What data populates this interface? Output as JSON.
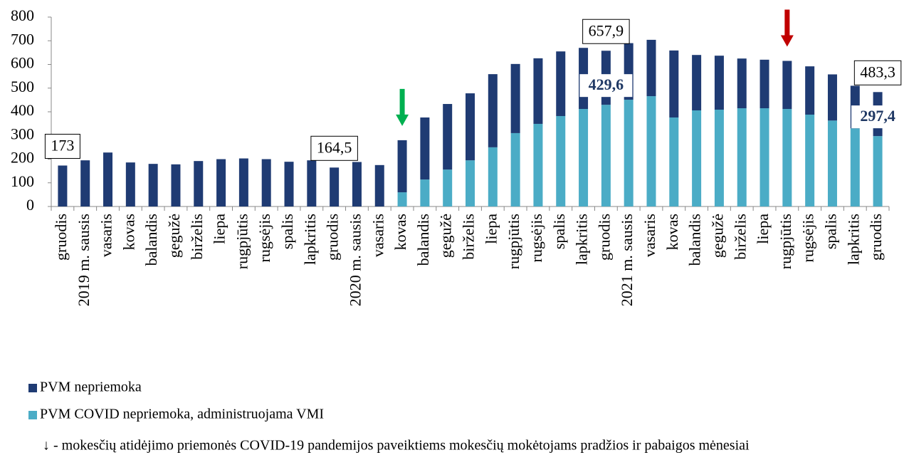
{
  "chart_data": {
    "type": "stacked_bar",
    "categories": [
      "gruodis",
      "2019 m. sausis",
      "vasaris",
      "kovas",
      "balandis",
      "gegužė",
      "birželis",
      "liepa",
      "rugpjūtis",
      "rugsėjis",
      "spalis",
      "lapkritis",
      "gruodis",
      "2020 m. sausis",
      "vasaris",
      "kovas",
      "balandis",
      "gegužė",
      "birželis",
      "liepa",
      "rugpjūtis",
      "rugsėjis",
      "spalis",
      "lapkritis",
      "gruodis",
      "2021 m. sausis",
      "vasaris",
      "kovas",
      "balandis",
      "gegužė",
      "birželis",
      "liepa",
      "rugpjūtis",
      "rugsėjis",
      "spalis",
      "lapkritis",
      "gruodis"
    ],
    "series": [
      {
        "name": "PVM nepriemoka",
        "color": "#1f3b73",
        "values": [
          173,
          195,
          228,
          186,
          180,
          178,
          192,
          200,
          203,
          200,
          189,
          195,
          164.5,
          188,
          175,
          220,
          262,
          277,
          283,
          309,
          292,
          277,
          273,
          258,
          228.3,
          239,
          238,
          283,
          234,
          228,
          210,
          205,
          203,
          204,
          195,
          180,
          185.9
        ]
      },
      {
        "name": "PVM COVID nepriemoka, administruojama VMI",
        "color": "#4bacc6",
        "values": [
          0,
          0,
          0,
          0,
          0,
          0,
          0,
          0,
          0,
          0,
          0,
          0,
          0,
          0,
          0,
          60,
          114,
          156,
          195,
          250,
          310,
          349,
          382,
          412,
          429.6,
          451,
          466,
          376,
          406,
          409,
          415,
          415,
          412,
          388,
          363,
          330,
          297.4
        ],
        "value_labels": [
          null,
          null,
          null,
          null,
          null,
          null,
          null,
          null,
          null,
          null,
          null,
          null,
          null,
          null,
          null,
          null,
          null,
          null,
          null,
          null,
          null,
          null,
          null,
          null,
          "429,6",
          null,
          null,
          null,
          null,
          null,
          null,
          null,
          null,
          null,
          null,
          null,
          "297,4"
        ]
      }
    ],
    "total_labels": [
      "173",
      null,
      null,
      null,
      null,
      null,
      null,
      null,
      null,
      null,
      null,
      null,
      "164,5",
      null,
      null,
      null,
      null,
      null,
      null,
      null,
      null,
      null,
      null,
      null,
      "657,9",
      null,
      null,
      null,
      null,
      null,
      null,
      null,
      null,
      null,
      null,
      null,
      "483,3"
    ],
    "arrows": [
      {
        "at": 15,
        "color": "#00b050"
      },
      {
        "at": 32,
        "color": "#c00000"
      }
    ],
    "footnote": "↓ - mokesčių atidėjimo priemonės COVID-19 pandemijos paveiktiems mokesčių mokėtojams pradžios ir pabaigos mėnesiai",
    "ylim": [
      0,
      800
    ],
    "yticks": [
      0,
      100,
      200,
      300,
      400,
      500,
      600,
      700,
      800
    ]
  }
}
